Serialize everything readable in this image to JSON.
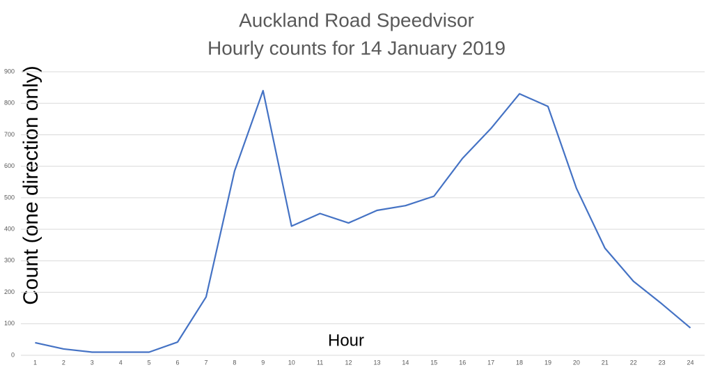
{
  "chart_data": {
    "type": "line",
    "title": "Auckland Road Speedvisor",
    "subtitle": "Hourly counts for 14 January 2019",
    "x_label": "Hour",
    "y_label": "Count (one direction only)",
    "categories": [
      1,
      2,
      3,
      4,
      5,
      6,
      7,
      8,
      9,
      10,
      11,
      12,
      13,
      14,
      15,
      16,
      17,
      18,
      19,
      20,
      21,
      22,
      23,
      24
    ],
    "series": [
      {
        "name": "Count",
        "color": "#4472c4",
        "values": [
          40,
          20,
          10,
          10,
          10,
          42,
          185,
          585,
          840,
          410,
          450,
          420,
          460,
          475,
          505,
          625,
          720,
          830,
          790,
          530,
          340,
          235,
          163,
          87
        ]
      }
    ],
    "ylim": [
      0,
      900
    ],
    "yticks": [
      0,
      100,
      200,
      300,
      400,
      500,
      600,
      700,
      800,
      900
    ],
    "grid": true
  }
}
